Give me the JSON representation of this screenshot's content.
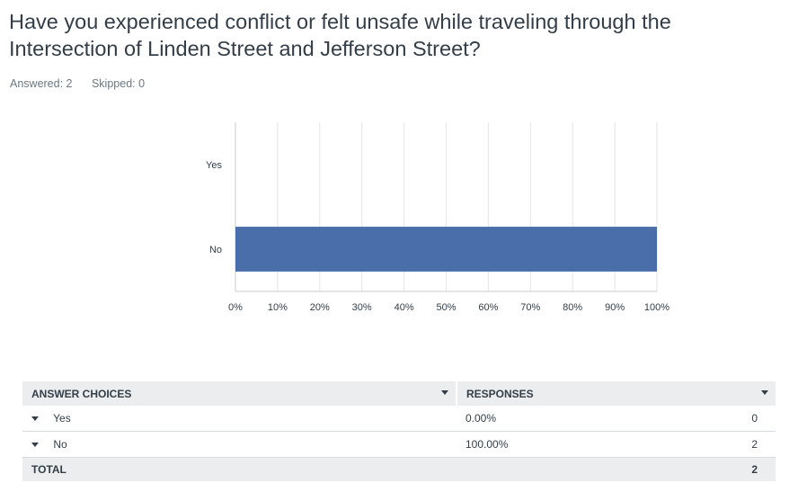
{
  "question": {
    "title": "Have you experienced conflict or felt unsafe while traveling through the Intersection of Linden Street and Jefferson Street?",
    "answered_label": "Answered: 2",
    "skipped_label": "Skipped: 0"
  },
  "chart_data": {
    "type": "bar",
    "orientation": "horizontal",
    "categories": [
      "Yes",
      "No"
    ],
    "values": [
      0,
      100
    ],
    "unit": "%",
    "xlim": [
      0,
      100
    ],
    "xticks": [
      "0%",
      "10%",
      "20%",
      "30%",
      "40%",
      "50%",
      "60%",
      "70%",
      "80%",
      "90%",
      "100%"
    ],
    "grid": true,
    "bar_color": "#4a6ea9"
  },
  "table": {
    "headers": {
      "choices": "ANSWER CHOICES",
      "responses": "RESPONSES"
    },
    "rows": [
      {
        "choice": "Yes",
        "percent": "0.00%",
        "count": "0"
      },
      {
        "choice": "No",
        "percent": "100.00%",
        "count": "2"
      }
    ],
    "total": {
      "label": "TOTAL",
      "count": "2"
    }
  }
}
